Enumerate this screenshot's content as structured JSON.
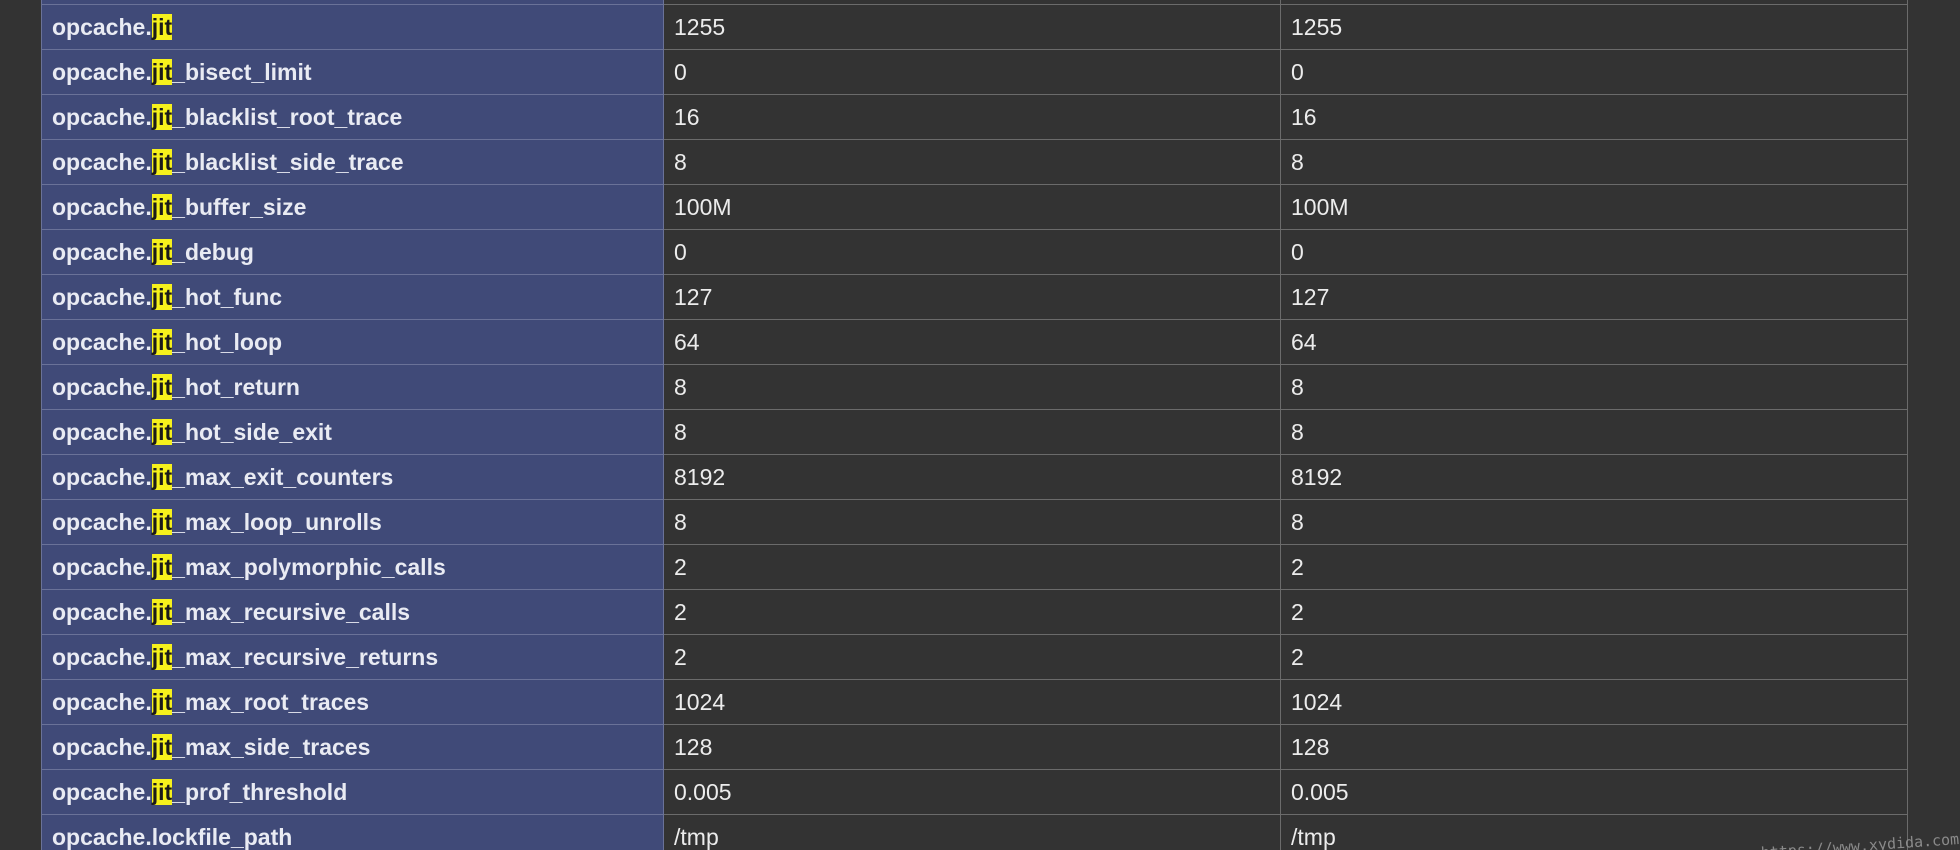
{
  "search": {
    "highlight": "jit"
  },
  "table": {
    "rows": [
      {
        "prefix": "",
        "hl": "",
        "suffix": "",
        "local": "",
        "master": ""
      },
      {
        "prefix": "opcache.",
        "hl": "jit",
        "suffix": "",
        "local": "1255",
        "master": "1255"
      },
      {
        "prefix": "opcache.",
        "hl": "jit",
        "suffix": "_bisect_limit",
        "local": "0",
        "master": "0"
      },
      {
        "prefix": "opcache.",
        "hl": "jit",
        "suffix": "_blacklist_root_trace",
        "local": "16",
        "master": "16"
      },
      {
        "prefix": "opcache.",
        "hl": "jit",
        "suffix": "_blacklist_side_trace",
        "local": "8",
        "master": "8"
      },
      {
        "prefix": "opcache.",
        "hl": "jit",
        "suffix": "_buffer_size",
        "local": "100M",
        "master": "100M"
      },
      {
        "prefix": "opcache.",
        "hl": "jit",
        "suffix": "_debug",
        "local": "0",
        "master": "0"
      },
      {
        "prefix": "opcache.",
        "hl": "jit",
        "suffix": "_hot_func",
        "local": "127",
        "master": "127"
      },
      {
        "prefix": "opcache.",
        "hl": "jit",
        "suffix": "_hot_loop",
        "local": "64",
        "master": "64"
      },
      {
        "prefix": "opcache.",
        "hl": "jit",
        "suffix": "_hot_return",
        "local": "8",
        "master": "8"
      },
      {
        "prefix": "opcache.",
        "hl": "jit",
        "suffix": "_hot_side_exit",
        "local": "8",
        "master": "8"
      },
      {
        "prefix": "opcache.",
        "hl": "jit",
        "suffix": "_max_exit_counters",
        "local": "8192",
        "master": "8192"
      },
      {
        "prefix": "opcache.",
        "hl": "jit",
        "suffix": "_max_loop_unrolls",
        "local": "8",
        "master": "8"
      },
      {
        "prefix": "opcache.",
        "hl": "jit",
        "suffix": "_max_polymorphic_calls",
        "local": "2",
        "master": "2"
      },
      {
        "prefix": "opcache.",
        "hl": "jit",
        "suffix": "_max_recursive_calls",
        "local": "2",
        "master": "2"
      },
      {
        "prefix": "opcache.",
        "hl": "jit",
        "suffix": "_max_recursive_returns",
        "local": "2",
        "master": "2"
      },
      {
        "prefix": "opcache.",
        "hl": "jit",
        "suffix": "_max_root_traces",
        "local": "1024",
        "master": "1024"
      },
      {
        "prefix": "opcache.",
        "hl": "jit",
        "suffix": "_max_side_traces",
        "local": "128",
        "master": "128"
      },
      {
        "prefix": "opcache.",
        "hl": "jit",
        "suffix": "_prof_threshold",
        "local": "0.005",
        "master": "0.005"
      },
      {
        "prefix": "opcache.lockfile_path",
        "hl": "",
        "suffix": "",
        "local": "/tmp",
        "master": "/tmp"
      }
    ]
  },
  "watermark": "https://www.xydida.com"
}
